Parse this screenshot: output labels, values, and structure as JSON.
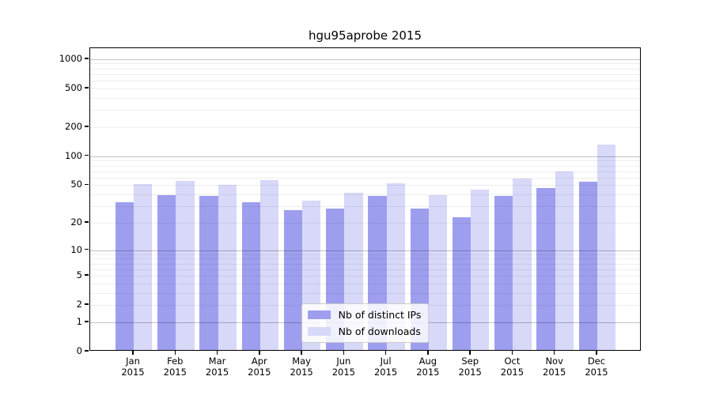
{
  "chart_data": {
    "type": "bar",
    "title": "hgu95aprobe 2015",
    "yscale": "log1p",
    "ylim": [
      0,
      1295
    ],
    "grid": true,
    "legend_position": "lower center",
    "y_ticks": [
      0,
      1,
      2,
      5,
      10,
      20,
      50,
      100,
      200,
      500,
      1000
    ],
    "minor_gridlines": [
      2,
      3,
      4,
      5,
      6,
      7,
      8,
      9,
      20,
      30,
      40,
      50,
      60,
      70,
      80,
      90,
      200,
      300,
      400,
      500,
      600,
      700,
      800,
      900
    ],
    "major_gridlines": [
      1,
      10,
      100,
      1000
    ],
    "categories": [
      "Jan",
      "Feb",
      "Mar",
      "Apr",
      "May",
      "Jun",
      "Jul",
      "Aug",
      "Sep",
      "Oct",
      "Nov",
      "Dec"
    ],
    "x_tick_year": "2015",
    "series": [
      {
        "name": "Nb of distinct IPs",
        "color": "#9e9eef",
        "values": [
          32,
          38,
          37,
          32,
          26,
          27,
          37,
          27,
          22,
          37,
          45,
          52
        ]
      },
      {
        "name": "Nb of downloads",
        "color": "#d8d8f9",
        "values": [
          49,
          53,
          48,
          54,
          33,
          40,
          50,
          38,
          43,
          56,
          67,
          127
        ]
      }
    ]
  },
  "colors": {
    "background": "#ffffff",
    "axis_frame": "#000000",
    "major_grid": "rgba(0,0,0,0.24)",
    "minor_grid": "rgba(0,0,0,0.065)",
    "text": "#000000"
  }
}
